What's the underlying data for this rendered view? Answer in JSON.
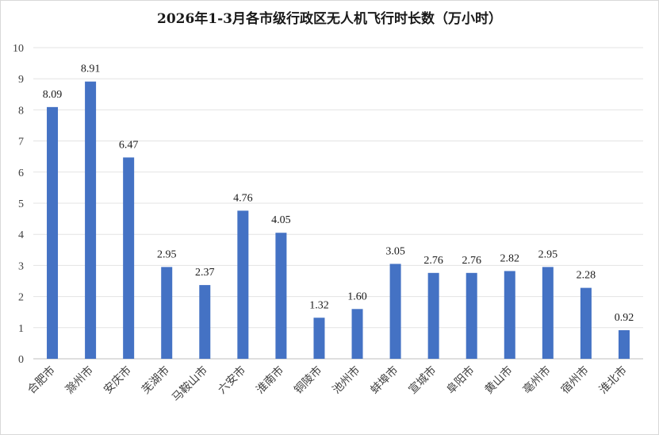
{
  "chart_data": {
    "type": "bar",
    "title": "2026年1-3月各市级行政区无人机飞行时长数（万小时）",
    "xlabel": "",
    "ylabel": "",
    "ylim": [
      0,
      10
    ],
    "yticks": [
      0,
      1,
      2,
      3,
      4,
      5,
      6,
      7,
      8,
      9,
      10
    ],
    "grid": true,
    "color": "#4472c4",
    "categories": [
      "合肥市",
      "滁州市",
      "安庆市",
      "芜湖市",
      "马鞍山市",
      "六安市",
      "淮南市",
      "铜陵市",
      "池州市",
      "蚌埠市",
      "宣城市",
      "阜阳市",
      "黄山市",
      "亳州市",
      "宿州市",
      "淮北市"
    ],
    "values": [
      8.09,
      8.91,
      6.47,
      2.95,
      2.37,
      4.76,
      4.05,
      1.32,
      1.6,
      3.05,
      2.76,
      2.76,
      2.82,
      2.95,
      2.28,
      0.92
    ],
    "data_labels": [
      "8.09",
      "8.91",
      "6.47",
      "2.95",
      "2.37",
      "4.76",
      "4.05",
      "1.32",
      "1.60",
      "3.05",
      "2.76",
      "2.76",
      "2.82",
      "2.95",
      "2.28",
      "0.92"
    ]
  }
}
